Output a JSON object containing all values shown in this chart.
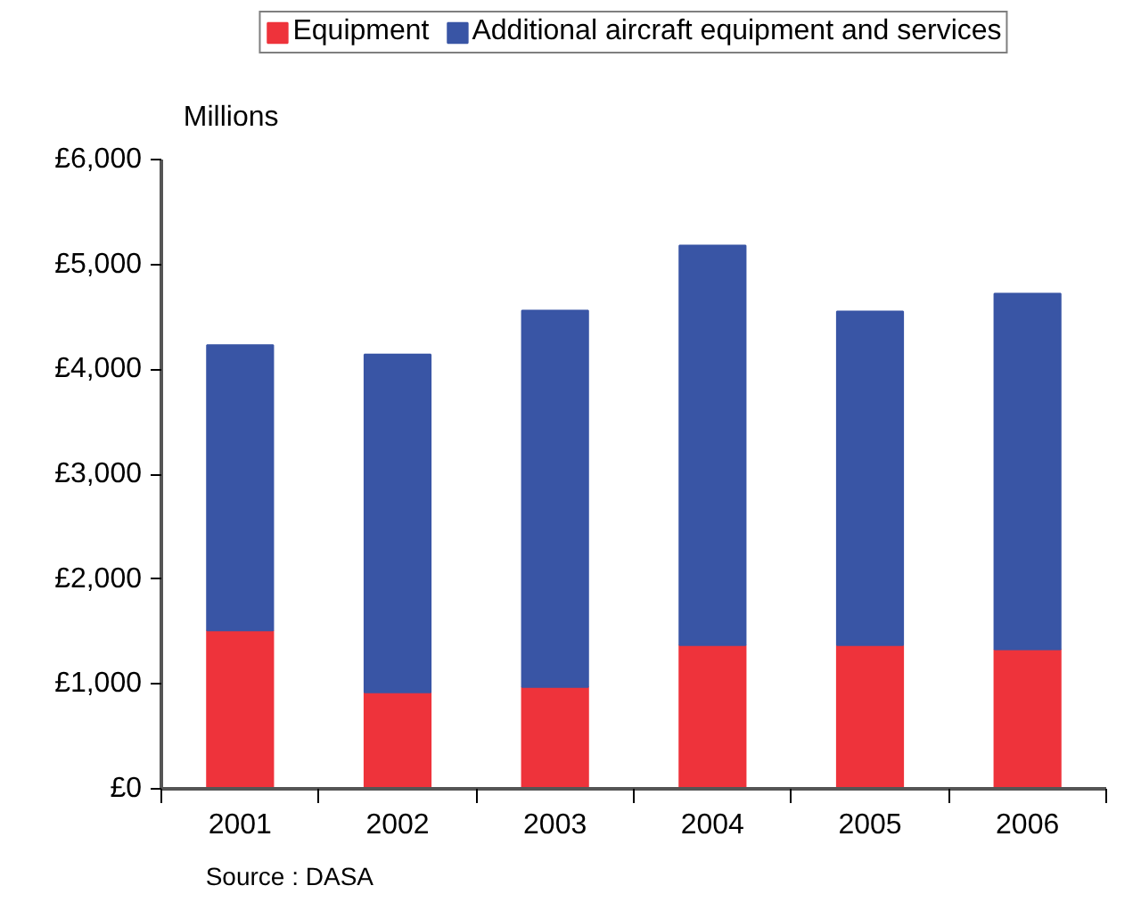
{
  "chart_data": {
    "type": "bar",
    "stacked": true,
    "ylabel": "Millions",
    "categories": [
      "2001",
      "2002",
      "2003",
      "2004",
      "2005",
      "2006"
    ],
    "series": [
      {
        "name": "Equipment",
        "color": "#ee333b",
        "values": [
          1510,
          920,
          970,
          1370,
          1370,
          1330
        ]
      },
      {
        "name": "Additional aircraft equipment and services",
        "color": "#3955a5",
        "values": [
          2720,
          3220,
          3590,
          3810,
          3180,
          3390
        ]
      }
    ],
    "ylim": [
      0,
      6000
    ],
    "yticks": [
      {
        "value": 0,
        "label": "£0"
      },
      {
        "value": 1000,
        "label": "£1,000"
      },
      {
        "value": 2000,
        "label": "£2,000"
      },
      {
        "value": 3000,
        "label": "£3,000"
      },
      {
        "value": 4000,
        "label": "£4,000"
      },
      {
        "value": 5000,
        "label": "£5,000"
      },
      {
        "value": 6000,
        "label": "£6,000"
      }
    ],
    "grid": false,
    "legend": "top",
    "annotations": [
      "Source : DASA"
    ]
  }
}
